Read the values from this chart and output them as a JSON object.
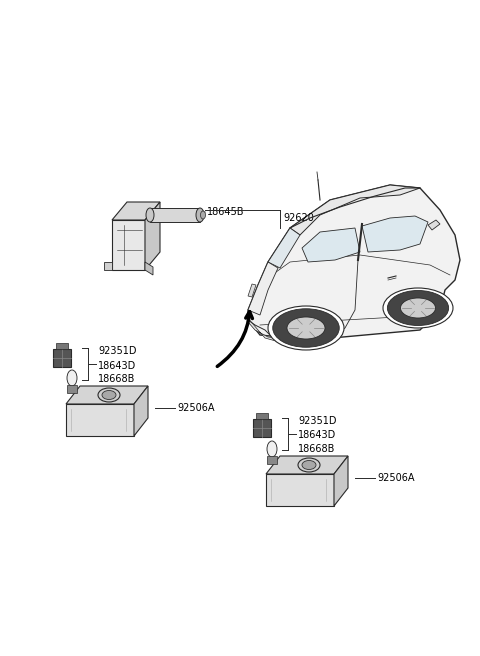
{
  "background_color": "#ffffff",
  "fig_width": 4.8,
  "fig_height": 6.56,
  "dpi": 100,
  "line_color": "#2a2a2a",
  "label_color": "#000000",
  "font_size": 7.0,
  "car_color": "#f5f5f5",
  "part_color": "#e8e8e8",
  "part_dark": "#cccccc",
  "part_darker": "#aaaaaa",
  "arrow_color": "#111111",
  "note_18645B": "18645B",
  "note_92620": "92620",
  "note_92351D": "92351D",
  "note_18643D": "18643D",
  "note_18668B": "18668B",
  "note_92506A": "92506A"
}
